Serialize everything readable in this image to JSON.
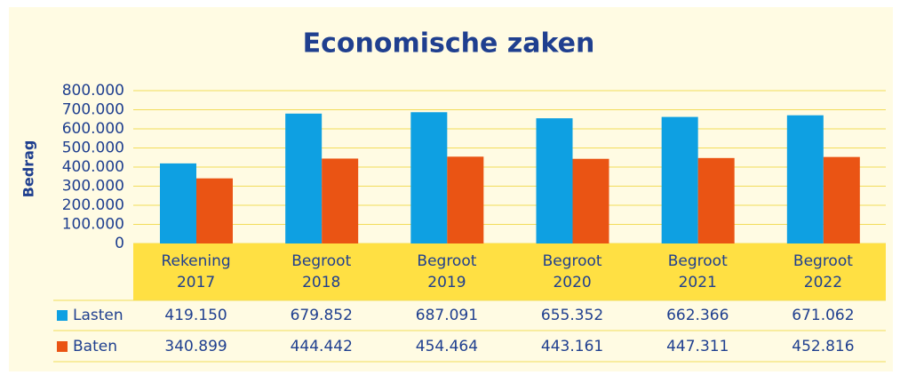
{
  "chart_data": {
    "type": "bar",
    "title": "Economische zaken",
    "y_label": "Bedrag",
    "categories": [
      "Rekening 2017",
      "Begroot 2018",
      "Begroot 2019",
      "Begroot 2020",
      "Begroot 2021",
      "Begroot 2022"
    ],
    "series": [
      {
        "name": "Lasten",
        "color": "#0ea0e2",
        "values": [
          419150,
          679852,
          687091,
          655352,
          662366,
          671062
        ],
        "value_labels": [
          "419.150",
          "679.852",
          "687.091",
          "655.352",
          "662.366",
          "671.062"
        ]
      },
      {
        "name": "Baten",
        "color": "#ea5414",
        "values": [
          340899,
          444442,
          454464,
          443161,
          447311,
          452816
        ],
        "value_labels": [
          "340.899",
          "444.442",
          "454.464",
          "443.161",
          "447.311",
          "452.816"
        ]
      }
    ],
    "ylim": [
      0,
      800000
    ],
    "yticks": [
      0,
      {
        "value": 100000,
        "label": "100.000"
      },
      {
        "value": 200000,
        "label": "200.000"
      },
      {
        "value": 300000,
        "label": "300.000"
      },
      {
        "value": 400000,
        "label": "400.000"
      },
      {
        "value": 500000,
        "label": "500.000"
      },
      {
        "value": 600000,
        "label": "600.000"
      },
      {
        "value": 700000,
        "label": "700.000"
      },
      {
        "value": 800000,
        "label": "800.000"
      }
    ],
    "grid": true
  }
}
